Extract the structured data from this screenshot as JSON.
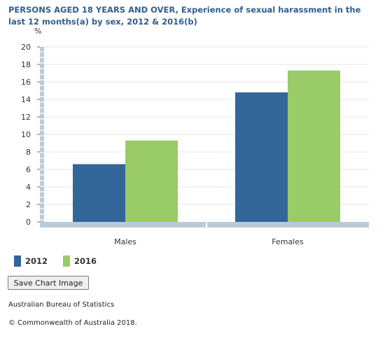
{
  "chart_data": {
    "type": "bar",
    "title": "PERSONS AGED 18 YEARS AND OVER, Experience of sexual harassment in the last 12 months(a) by sex, 2012 & 2016(b)",
    "ylabel": "%",
    "xlabel": "",
    "categories": [
      "Males",
      "Females"
    ],
    "series": [
      {
        "name": "2012",
        "values": [
          6.6,
          14.8
        ],
        "color": "#336699"
      },
      {
        "name": "2016",
        "values": [
          9.3,
          17.3
        ],
        "color": "#99cc66"
      }
    ],
    "ylim": [
      0,
      20
    ],
    "yticks": [
      "0",
      "2",
      "4",
      "6",
      "8",
      "10",
      "12",
      "14",
      "16",
      "18",
      "20"
    ],
    "grid": true,
    "legend_position": "bottom-left"
  },
  "controls": {
    "save_label": "Save Chart Image"
  },
  "footer": {
    "source": "Australian Bureau of Statistics",
    "copyright": "© Commonwealth of Australia 2018."
  },
  "colors": {
    "axis": "#bccbd9",
    "grid": "#e6e6e6",
    "title": "#2f5f8f"
  }
}
